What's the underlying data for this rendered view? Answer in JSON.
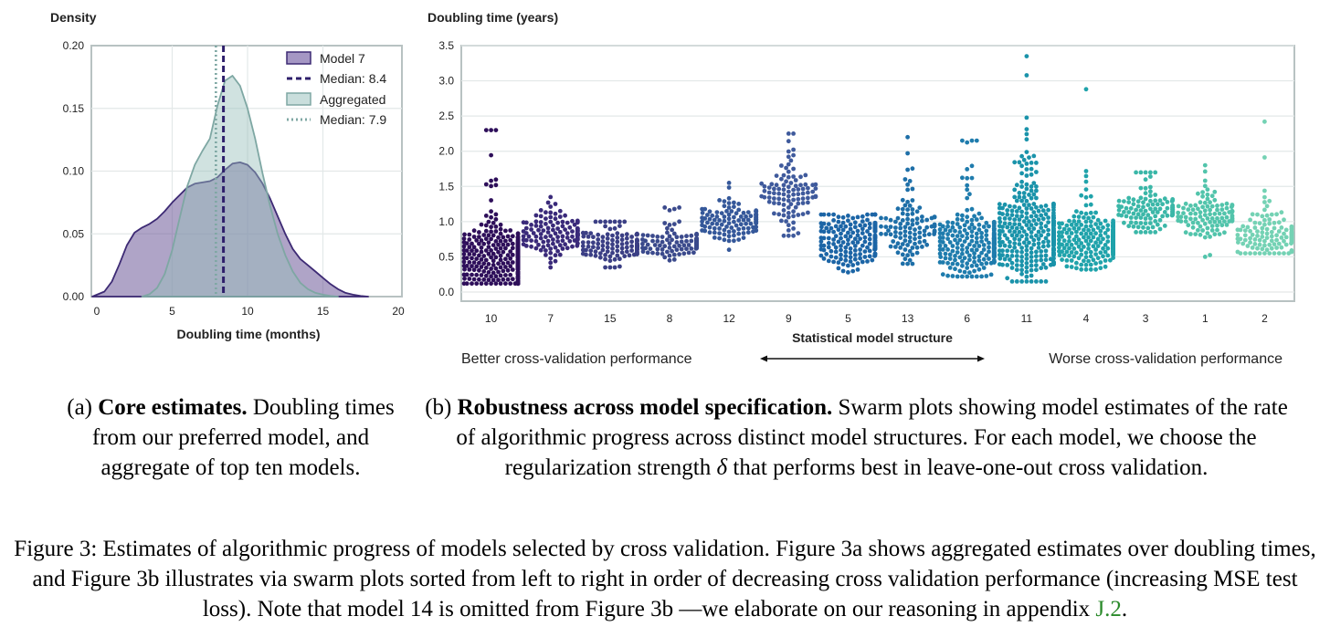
{
  "panel_a": {
    "ylabel": "Density",
    "xlabel": "Doubling time (months)",
    "legend": {
      "model7": "Model 7",
      "median_model7": "Median: 8.4",
      "aggregated": "Aggregated",
      "median_aggregated": "Median: 7.9"
    }
  },
  "panel_b": {
    "ylabel": "Doubling time (years)",
    "xlabel": "Statistical model structure",
    "better_label": "Better cross-validation performance",
    "worse_label": "Worse cross-validation performance"
  },
  "captions": {
    "a_prefix": "(a) ",
    "a_bold": "Core estimates.",
    "a_rest": " Doubling times from our preferred model, and aggregate of top ten models.",
    "b_prefix": "(b) ",
    "b_bold": "Robustness across model specification.",
    "b_rest1": " Swarm plots showing model estimates of the rate of algorithmic progress across distinct model structures. For each model, we choose the regularization strength ",
    "b_delta": "δ",
    "b_rest2": " that performs best in leave-one-out cross validation.",
    "figure_text": "Figure 3: Estimates of algorithmic progress of models selected by cross validation. Figure 3a shows aggregated estimates over doubling times, and Figure 3b illustrates via swarm plots sorted from left to right in order of decreasing cross validation performance (increasing MSE test loss). Note that model 14 is omitted from Figure 3b —we elaborate on our reasoning in appendix ",
    "figure_link": "J.2",
    "figure_end": "."
  },
  "chart_data": [
    {
      "type": "area",
      "xlim": [
        0,
        20
      ],
      "ylim": [
        0,
        0.2
      ],
      "xticks": [
        "0",
        "5",
        "10",
        "15",
        "20"
      ],
      "yticks": [
        "0.00",
        "0.05",
        "0.10",
        "0.15",
        "0.20"
      ],
      "legend_position": "top-right",
      "grid": true,
      "series": [
        {
          "name": "Model 7",
          "color": "#6e5a99",
          "x": [
            -0.3,
            0.5,
            1.0,
            1.5,
            2.0,
            2.5,
            3.0,
            3.5,
            4.0,
            4.5,
            5.0,
            5.5,
            6.0,
            6.5,
            7.0,
            7.5,
            8.0,
            8.5,
            9.0,
            9.5,
            10.0,
            10.5,
            11.0,
            11.5,
            12.0,
            12.5,
            13.0,
            13.5,
            14.0,
            14.5,
            15.0,
            15.5,
            16.0,
            16.5,
            17.0,
            17.5,
            18.0
          ],
          "y": [
            0.0,
            0.004,
            0.012,
            0.026,
            0.041,
            0.051,
            0.055,
            0.058,
            0.062,
            0.068,
            0.075,
            0.081,
            0.087,
            0.09,
            0.091,
            0.092,
            0.095,
            0.101,
            0.106,
            0.107,
            0.105,
            0.099,
            0.09,
            0.078,
            0.064,
            0.05,
            0.038,
            0.03,
            0.025,
            0.02,
            0.015,
            0.01,
            0.006,
            0.003,
            0.0015,
            0.0005,
            0.0
          ]
        },
        {
          "name": "Aggregated",
          "color": "#8fb8b5",
          "x": [
            3.0,
            3.5,
            4.0,
            4.5,
            5.0,
            5.5,
            6.0,
            6.5,
            7.0,
            7.5,
            8.0,
            8.5,
            9.0,
            9.5,
            10.0,
            10.5,
            11.0,
            11.5,
            12.0,
            12.5,
            13.0,
            13.5,
            14.0,
            14.5,
            15.0,
            15.5,
            16.0
          ],
          "y": [
            0.0,
            0.002,
            0.007,
            0.018,
            0.037,
            0.063,
            0.088,
            0.105,
            0.116,
            0.126,
            0.152,
            0.172,
            0.176,
            0.168,
            0.15,
            0.126,
            0.098,
            0.072,
            0.05,
            0.033,
            0.02,
            0.011,
            0.006,
            0.003,
            0.0015,
            0.0005,
            0.0
          ]
        }
      ],
      "medians": [
        {
          "name": "Median: 8.4",
          "x": 8.4,
          "color": "#2e1f6b",
          "style": "dashed"
        },
        {
          "name": "Median: 7.9",
          "x": 7.9,
          "color": "#7ea7a3",
          "style": "dotted"
        }
      ]
    },
    {
      "type": "scatter",
      "ylim": [
        0,
        3.5
      ],
      "yticks": [
        "0.0",
        "0.5",
        "1.0",
        "1.5",
        "2.0",
        "2.5",
        "3.0",
        "3.5"
      ],
      "grid": true,
      "categories": [
        "10",
        "7",
        "15",
        "8",
        "12",
        "9",
        "5",
        "13",
        "6",
        "11",
        "4",
        "3",
        "1",
        "2"
      ],
      "groups": [
        {
          "category": "10",
          "color": "#2e0f5a",
          "n": 360,
          "center": 0.45,
          "spread": 0.22,
          "min": 0.12,
          "max": 2.3
        },
        {
          "category": "7",
          "color": "#3a2a7a",
          "n": 130,
          "center": 0.8,
          "spread": 0.15,
          "min": 0.35,
          "max": 1.35
        },
        {
          "category": "15",
          "color": "#3b3f85",
          "n": 130,
          "center": 0.65,
          "spread": 0.12,
          "min": 0.35,
          "max": 1.0
        },
        {
          "category": "8",
          "color": "#3b4a8c",
          "n": 120,
          "center": 0.68,
          "spread": 0.09,
          "min": 0.45,
          "max": 1.2
        },
        {
          "category": "12",
          "color": "#35589a",
          "n": 120,
          "center": 1.0,
          "spread": 0.13,
          "min": 0.6,
          "max": 1.55
        },
        {
          "category": "9",
          "color": "#3f5a9c",
          "n": 100,
          "center": 1.4,
          "spread": 0.25,
          "min": 0.8,
          "max": 2.25
        },
        {
          "category": "5",
          "color": "#1c65a6",
          "n": 200,
          "center": 0.7,
          "spread": 0.2,
          "min": 0.28,
          "max": 1.1
        },
        {
          "category": "13",
          "color": "#1e6fa8",
          "n": 110,
          "center": 0.85,
          "spread": 0.2,
          "min": 0.4,
          "max": 2.2
        },
        {
          "category": "6",
          "color": "#1f7cad",
          "n": 280,
          "center": 0.65,
          "spread": 0.2,
          "min": 0.22,
          "max": 2.15
        },
        {
          "category": "11",
          "color": "#1a93aa",
          "n": 380,
          "center": 0.75,
          "spread": 0.3,
          "min": 0.15,
          "max": 3.35
        },
        {
          "category": "4",
          "color": "#20a3ab",
          "n": 300,
          "center": 0.7,
          "spread": 0.17,
          "min": 0.32,
          "max": 2.88
        },
        {
          "category": "3",
          "color": "#3bb7a8",
          "n": 120,
          "center": 1.15,
          "spread": 0.13,
          "min": 0.85,
          "max": 1.7
        },
        {
          "category": "1",
          "color": "#52c4ab",
          "n": 110,
          "center": 1.1,
          "spread": 0.17,
          "min": 0.5,
          "max": 1.8
        },
        {
          "category": "2",
          "color": "#74d2b4",
          "n": 130,
          "center": 0.8,
          "spread": 0.2,
          "min": 0.55,
          "max": 2.42
        }
      ]
    }
  ]
}
